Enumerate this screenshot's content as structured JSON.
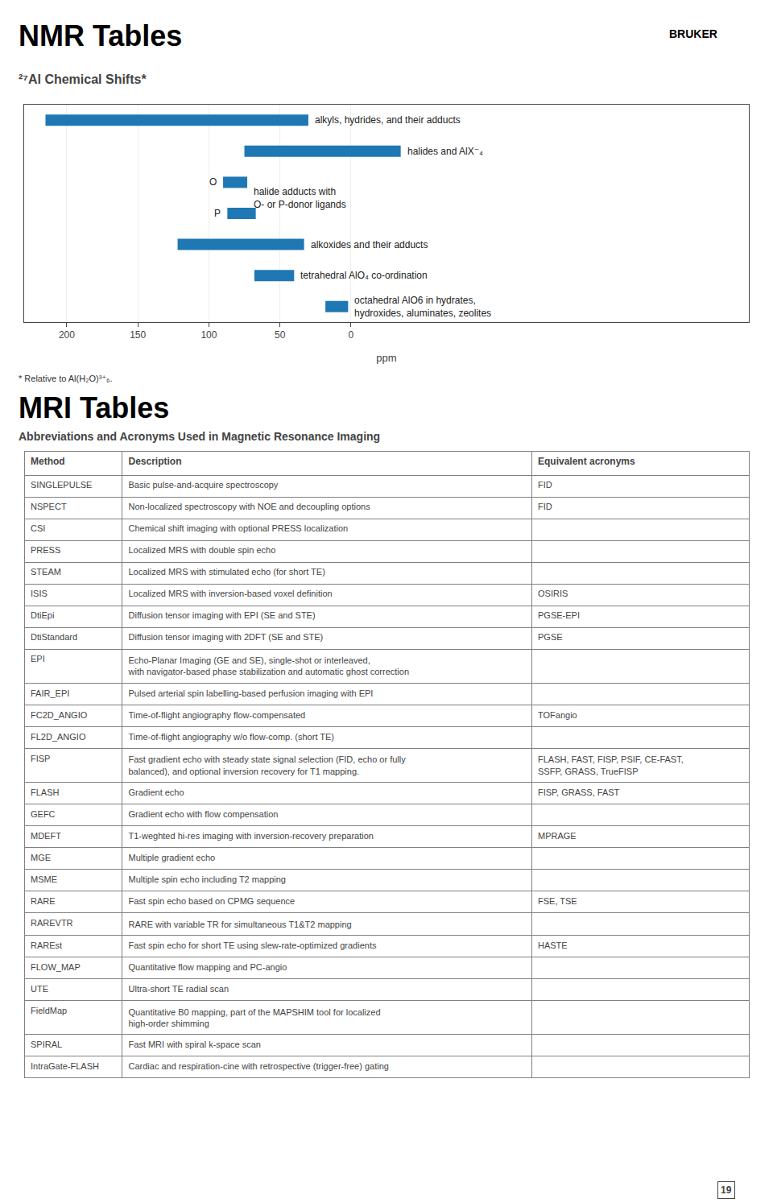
{
  "chart_data": [
    {
      "type": "bar",
      "orientation": "horizontal",
      "title": "NMR Tables",
      "subtitle": "²⁷Al Chemical Shifts*",
      "categories": [
        "alkyls, hydrides, and their adducts",
        "halides and AlX⁻₄",
        "O",
        "P",
        "alkoxides and their adducts",
        "tetrahedral AlO₄ co-ordination",
        "octahedral AlO6 in hydrates,\nhydroxides, aluminates, zeolites"
      ],
      "values": [
        [
          215,
          30
        ],
        [
          75,
          -35
        ],
        [
          90,
          73
        ],
        [
          87,
          67
        ],
        [
          122,
          33
        ],
        [
          68,
          40
        ],
        [
          18,
          2
        ]
      ],
      "xlabel": "ppm",
      "xlim": [
        230,
        -280
      ],
      "xticks": [
        200,
        150,
        100,
        50,
        0
      ],
      "grid": true,
      "tick_labels": "x",
      "annotations": [
        {
          "text": "halide adducts with\nO- or P-donor ligands",
          "x": 73,
          "y": [
            "O",
            "P"
          ]
        }
      ],
      "footnote": "* Relative to Al(H₂O)³⁺₆.",
      "logo": "BRUKER"
    },
    {
      "type": "table",
      "title": "MRI Tables",
      "subtitle": "Abbreviations and Acronyms Used in Magnetic Resonance Imaging",
      "columns": [
        "Method",
        "Description",
        "Equivalent acronyms"
      ],
      "rows": [
        [
          "SINGLEPULSE",
          "Basic pulse-and-acquire spectroscopy",
          "FID"
        ],
        [
          "NSPECT",
          "Non-localized spectroscopy with NOE and decoupling options",
          "FID"
        ],
        [
          "CSI",
          "Chemical shift imaging with optional PRESS localization",
          ""
        ],
        [
          "PRESS",
          "Localized MRS with double spin echo",
          ""
        ],
        [
          "STEAM",
          "Localized MRS with stimulated echo (for short TE)",
          ""
        ],
        [
          "ISIS",
          "Localized MRS with inversion-based voxel definition",
          "OSIRIS"
        ],
        [
          "DtiEpi",
          "Diffusion tensor imaging with EPI (SE and STE)",
          "PGSE-EPI"
        ],
        [
          "DtiStandard",
          "Diffusion tensor imaging with 2DFT (SE and STE)",
          "PGSE"
        ],
        [
          "EPI",
          "Echo-Planar Imaging (GE and SE), single-shot or interleaved,\nwith navigator-based phase stabilization and automatic ghost correction",
          ""
        ],
        [
          "FAIR_EPI",
          "Pulsed arterial spin labelling-based perfusion imaging with EPI",
          ""
        ],
        [
          "FC2D_ANGIO",
          "Time-of-flight angiography flow-compensated",
          "TOFangio"
        ],
        [
          "FL2D_ANGIO",
          "Time-of-flight angiography w/o flow-comp. (short TE)",
          ""
        ],
        [
          "FISP",
          "Fast gradient echo with steady state signal selection (FID, echo or fully\nbalanced), and optional inversion recovery for T1 mapping.",
          "FLASH, FAST, FISP, PSIF, CE-FAST,\nSSFP, GRASS, TrueFISP"
        ],
        [
          "FLASH",
          "Gradient echo",
          "FISP, GRASS, FAST"
        ],
        [
          "GEFC",
          "Gradient echo with flow compensation",
          ""
        ],
        [
          "MDEFT",
          "T1-weghted hi-res imaging with inversion-recovery preparation",
          "MPRAGE"
        ],
        [
          "MGE",
          "Multiple gradient echo",
          ""
        ],
        [
          "MSME",
          "Multiple spin echo including T2 mapping",
          ""
        ],
        [
          "RARE",
          "Fast spin echo based on CPMG sequence",
          "FSE, TSE"
        ],
        [
          "RAREVTR",
          "RARE with variable TR for simultaneous T1&T2 mapping",
          ""
        ],
        [
          "RAREst",
          "Fast spin echo for short TE using slew-rate-optimized gradients",
          "HASTE"
        ],
        [
          "FLOW_MAP",
          "Quantitative flow mapping and PC-angio",
          ""
        ],
        [
          "UTE",
          "Ultra-short TE radial scan",
          ""
        ],
        [
          "FieldMap",
          "Quantitative B0 mapping, part of the MAPSHIM tool for localized\nhigh-order shimming",
          ""
        ],
        [
          "SPIRAL",
          "Fast MRI with spiral k-space scan",
          ""
        ],
        [
          "IntraGate-FLASH",
          "Cardiac and respiration-cine with retrospective (trigger-free) gating",
          ""
        ]
      ],
      "page_number": "19"
    }
  ]
}
